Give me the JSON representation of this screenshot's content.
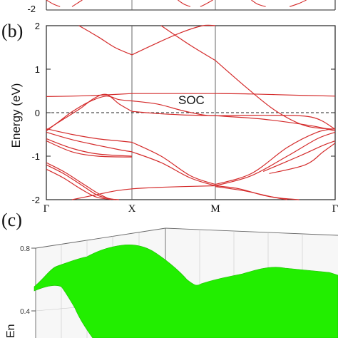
{
  "chart_data": [
    {
      "type": "line",
      "panel_label": "",
      "x_positions": [
        0,
        1,
        2,
        3
      ],
      "ylim": [
        -2.05,
        -1.9
      ],
      "yticks": [
        -2
      ],
      "tick_labels": [
        "-2"
      ],
      "line_color": "#d42b2b",
      "series": [
        {
          "x": [
            0.0,
            0.08,
            0.16
          ],
          "y": [
            -1.9,
            -1.96,
            -2.0
          ]
        },
        {
          "x": [
            0.3,
            0.36,
            0.42
          ],
          "y": [
            -2.0,
            -1.95,
            -1.9
          ]
        },
        {
          "x": [
            1.55,
            1.62,
            1.7
          ],
          "y": [
            -1.9,
            -1.96,
            -2.0
          ]
        },
        {
          "x": [
            1.82,
            1.9,
            1.97
          ],
          "y": [
            -2.0,
            -1.95,
            -1.9
          ]
        },
        {
          "x": [
            2.3,
            2.35,
            2.42
          ],
          "y": [
            -1.9,
            -1.96,
            -2.0
          ]
        },
        {
          "x": [
            2.62,
            2.7,
            2.76
          ],
          "y": [
            -2.0,
            -1.95,
            -1.9
          ]
        }
      ]
    },
    {
      "type": "line",
      "panel_label": "(b)",
      "annotation": "SOC",
      "ylabel": "Energy (eV)",
      "ylim": [
        -2,
        2
      ],
      "yticks": [
        -2,
        -1,
        0,
        1,
        2
      ],
      "ytick_labels": [
        "-2",
        "-1",
        "0",
        "1",
        "2"
      ],
      "x_positions": [
        0,
        1,
        2,
        3
      ],
      "xtick_labels": [
        "Γ",
        "X",
        "M",
        "Γ"
      ],
      "fermi_level": 0,
      "line_color": "#d42b2b",
      "series": [
        {
          "x": [
            0,
            0.3,
            0.6,
            1.0
          ],
          "y": [
            0.37,
            0.38,
            0.4,
            0.44
          ]
        },
        {
          "x": [
            1.0,
            1.3,
            1.6,
            2.0
          ],
          "y": [
            0.44,
            0.44,
            0.44,
            0.44
          ]
        },
        {
          "x": [
            2.0,
            2.3,
            2.7,
            3.0
          ],
          "y": [
            0.44,
            0.43,
            0.4,
            0.38
          ]
        },
        {
          "x": [
            0,
            0.2,
            0.4,
            0.55,
            0.7,
            0.85,
            1.0
          ],
          "y": [
            -0.4,
            -0.15,
            0.1,
            0.32,
            0.42,
            0.2,
            0.03
          ]
        },
        {
          "x": [
            0,
            0.15,
            0.3,
            0.5,
            0.7,
            0.85,
            1.0
          ],
          "y": [
            -0.42,
            -0.2,
            0.02,
            0.25,
            0.38,
            0.3,
            0.27
          ]
        },
        {
          "x": [
            1.0,
            1.3,
            1.6,
            1.85,
            2.0
          ],
          "y": [
            0.27,
            0.2,
            0.05,
            -0.05,
            -0.07
          ]
        },
        {
          "x": [
            1.0,
            1.3,
            1.6,
            2.0
          ],
          "y": [
            0.03,
            -0.02,
            -0.05,
            -0.07
          ]
        },
        {
          "x": [
            2.0,
            2.4,
            2.8,
            3.0
          ],
          "y": [
            -0.07,
            -0.06,
            -0.1,
            -0.38
          ]
        },
        {
          "x": [
            2.0,
            2.4,
            2.8,
            3.0
          ],
          "y": [
            -0.07,
            -0.15,
            -0.3,
            -0.42
          ]
        },
        {
          "x": [
            0.38,
            0.6,
            0.8,
            1.0
          ],
          "y": [
            2.0,
            1.75,
            1.5,
            1.33
          ]
        },
        {
          "x": [
            1.0,
            1.3,
            1.6,
            1.85,
            2.0
          ],
          "y": [
            1.33,
            1.6,
            1.85,
            2.0,
            2.0
          ]
        },
        {
          "x": [
            1.35,
            1.7,
            2.0
          ],
          "y": [
            2.0,
            1.55,
            1.2
          ]
        },
        {
          "x": [
            2.0,
            2.25,
            2.5,
            2.75,
            3.0
          ],
          "y": [
            1.2,
            0.6,
            0.05,
            -0.3,
            -0.38
          ]
        },
        {
          "x": [
            0,
            0.3,
            0.6,
            0.85,
            1.0
          ],
          "y": [
            -0.37,
            -0.5,
            -0.6,
            -0.65,
            -0.68
          ]
        },
        {
          "x": [
            0,
            0.3,
            0.6,
            0.85,
            1.0
          ],
          "y": [
            -0.45,
            -0.62,
            -0.75,
            -0.85,
            -0.9
          ]
        },
        {
          "x": [
            1.0,
            1.35,
            1.7,
            2.0
          ],
          "y": [
            -0.68,
            -1.0,
            -1.45,
            -1.65
          ]
        },
        {
          "x": [
            1.0,
            1.35,
            1.7,
            2.0
          ],
          "y": [
            -0.9,
            -1.15,
            -1.5,
            -1.68
          ]
        },
        {
          "x": [
            2.0,
            2.3,
            2.6,
            2.85,
            3.0
          ],
          "y": [
            -1.65,
            -1.4,
            -0.8,
            -0.45,
            -0.37
          ]
        },
        {
          "x": [
            2.0,
            2.3,
            2.6,
            2.85,
            3.0
          ],
          "y": [
            -1.68,
            -1.45,
            -1.0,
            -0.6,
            -0.45
          ]
        },
        {
          "x": [
            0,
            0.3,
            0.6,
            1.0
          ],
          "y": [
            -0.6,
            -0.82,
            -0.95,
            -1.0
          ]
        },
        {
          "x": [
            0,
            0.3,
            0.6,
            1.0
          ],
          "y": [
            -0.65,
            -0.9,
            -1.0,
            -1.02
          ]
        },
        {
          "x": [
            2.4,
            2.7,
            2.9,
            3.0
          ],
          "y": [
            -1.35,
            -1.0,
            -0.75,
            -0.65
          ]
        },
        {
          "x": [
            2.45,
            2.75,
            2.9,
            3.0
          ],
          "y": [
            -1.4,
            -1.2,
            -0.9,
            -0.7
          ]
        },
        {
          "x": [
            0,
            0.2,
            0.4,
            0.6,
            0.75
          ],
          "y": [
            -1.15,
            -1.35,
            -1.6,
            -1.85,
            -2.0
          ]
        },
        {
          "x": [
            0,
            0.2,
            0.4,
            0.6,
            0.8
          ],
          "y": [
            -1.2,
            -1.4,
            -1.65,
            -1.9,
            -2.0
          ]
        },
        {
          "x": [
            0,
            0.2,
            0.4,
            0.6,
            0.85
          ],
          "y": [
            -1.3,
            -1.5,
            -1.75,
            -1.95,
            -2.0
          ]
        },
        {
          "x": [
            0.3,
            0.55,
            0.8,
            1.0
          ],
          "y": [
            -2.0,
            -1.9,
            -1.8,
            -1.75
          ]
        },
        {
          "x": [
            1.0,
            1.3,
            1.6,
            2.0
          ],
          "y": [
            -1.75,
            -1.72,
            -1.7,
            -1.68
          ]
        },
        {
          "x": [
            2.0,
            2.2,
            2.4,
            2.6
          ],
          "y": [
            -1.68,
            -1.75,
            -1.9,
            -2.0
          ]
        },
        {
          "x": [
            2.0,
            2.25,
            2.5,
            2.7
          ],
          "y": [
            -1.7,
            -1.8,
            -1.95,
            -2.0
          ]
        }
      ]
    },
    {
      "type": "surface",
      "panel_label": "(c)",
      "zlabel": "En",
      "zticks": [
        0.8,
        0.4
      ],
      "ztick_labels": [
        "0.8",
        "0.4"
      ],
      "surface_color": "#22ee00"
    }
  ]
}
